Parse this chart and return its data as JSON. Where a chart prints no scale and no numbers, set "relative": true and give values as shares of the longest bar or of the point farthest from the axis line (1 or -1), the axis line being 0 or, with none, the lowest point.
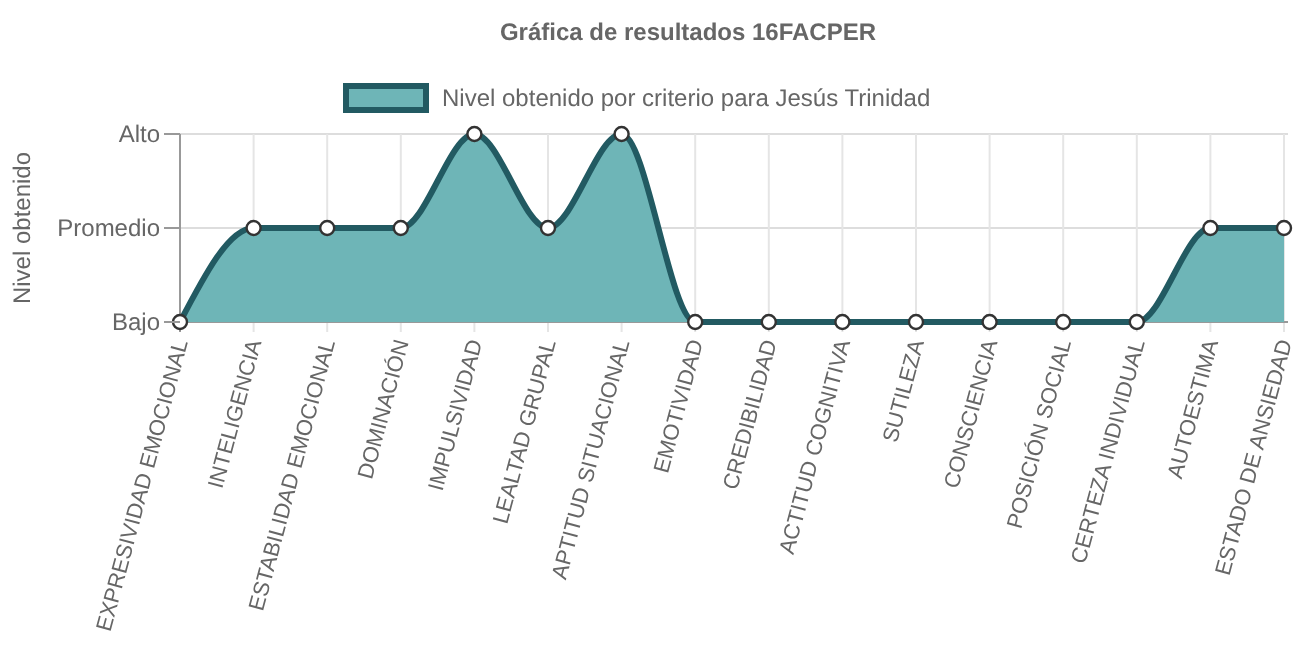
{
  "chart_data": {
    "type": "area",
    "title": "Gráfica de resultados 16FACPER",
    "ylabel": "Nivel obtenido",
    "categories": [
      "EXPRESIVIDAD EMOCIONAL",
      "INTELIGENCIA",
      "ESTABILIDAD EMOCIONAL",
      "DOMINACIÓN",
      "IMPULSIVIDAD",
      "LEALTAD GRUPAL",
      "APTITUD SITUACIONAL",
      "EMOTIVIDAD",
      "CREDIBILIDAD",
      "ACTITUD COGNITIVA",
      "SUTILEZA",
      "CONSCIENCIA",
      "POSICIÓN SOCIAL",
      "CERTEZA INDIVIDUAL",
      "AUTOESTIMA",
      "ESTADO DE ANSIEDAD"
    ],
    "series": [
      {
        "name": "Nivel obtenido por criterio para Jesús Trinidad",
        "color": "#225a62",
        "values": [
          0,
          0.5,
          0.5,
          0.5,
          1,
          0.5,
          1,
          0,
          0,
          0,
          0,
          0,
          0,
          0,
          0.5,
          0.5
        ]
      }
    ],
    "relative": true,
    "annotations": [
      "Bajo",
      "Promedio",
      "Alto"
    ],
    "grid": "x",
    "ref_lines": [
      {
        "axis": "y",
        "value": 0.5,
        "color": "#dddddd"
      }
    ],
    "legend": "top",
    "marker": "circle"
  }
}
